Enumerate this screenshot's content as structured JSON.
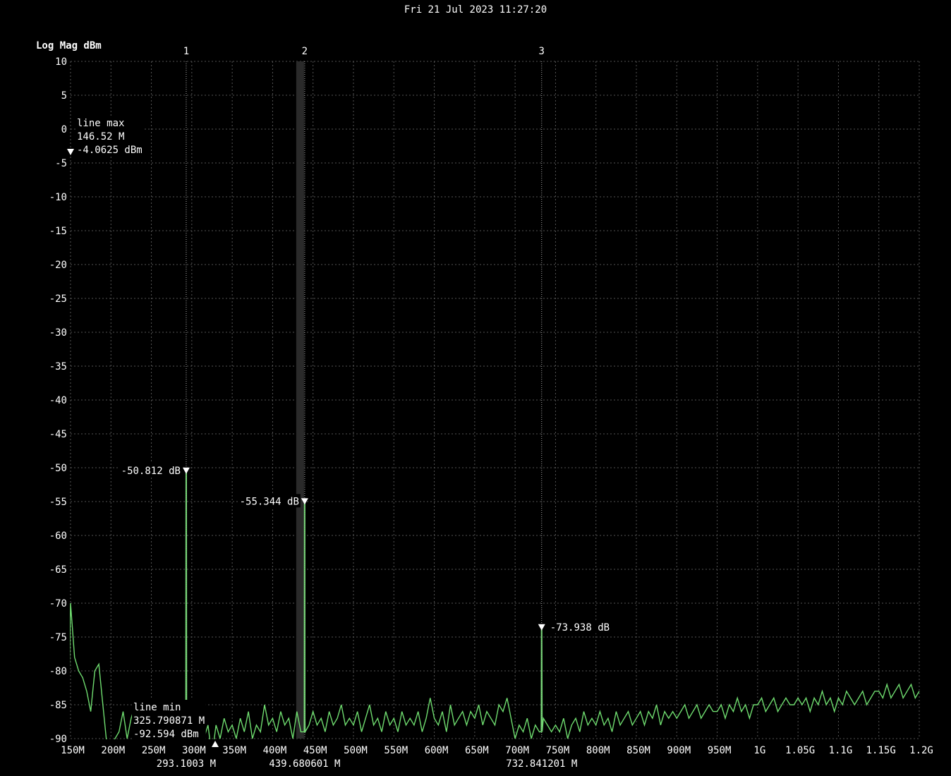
{
  "header": {
    "timestamp": "Fri 21 Jul 2023 11:27:20"
  },
  "colors": {
    "background": "#000000",
    "trace": "#6fdc6f",
    "grid": "#555555",
    "text": "#ffffff",
    "selected_marker_band": "#2a2a2a"
  },
  "chart_data": {
    "type": "line",
    "ylabel": "Log Mag dBm",
    "ylim": [
      -90,
      10
    ],
    "yticks": [
      10,
      5,
      0,
      -5,
      -10,
      -15,
      -20,
      -25,
      -30,
      -35,
      -40,
      -45,
      -50,
      -55,
      -60,
      -65,
      -70,
      -75,
      -80,
      -85,
      -90
    ],
    "xlim_mhz": [
      150,
      1200
    ],
    "xticks": [
      {
        "f": 150,
        "label": "150M"
      },
      {
        "f": 200,
        "label": "200M"
      },
      {
        "f": 250,
        "label": "250M"
      },
      {
        "f": 300,
        "label": "300M"
      },
      {
        "f": 350,
        "label": "350M"
      },
      {
        "f": 400,
        "label": "400M"
      },
      {
        "f": 450,
        "label": "450M"
      },
      {
        "f": 500,
        "label": "500M"
      },
      {
        "f": 550,
        "label": "550M"
      },
      {
        "f": 600,
        "label": "600M"
      },
      {
        "f": 650,
        "label": "650M"
      },
      {
        "f": 700,
        "label": "700M"
      },
      {
        "f": 750,
        "label": "750M"
      },
      {
        "f": 800,
        "label": "800M"
      },
      {
        "f": 850,
        "label": "850M"
      },
      {
        "f": 900,
        "label": "900M"
      },
      {
        "f": 950,
        "label": "950M"
      },
      {
        "f": 1000,
        "label": "1G"
      },
      {
        "f": 1050,
        "label": "1.05G"
      },
      {
        "f": 1100,
        "label": "1.1G"
      },
      {
        "f": 1150,
        "label": "1.15G"
      },
      {
        "f": 1200,
        "label": "1.2G"
      }
    ],
    "grid": true,
    "trace": {
      "start_mhz": 150,
      "step_mhz": 5,
      "values_dbm": [
        -70,
        -78,
        -80,
        -81,
        -83,
        -86,
        -80,
        -79,
        -85,
        -91,
        -91,
        -90,
        -89,
        -86,
        -90,
        -87,
        -85,
        -88,
        -86,
        -89,
        -91,
        -89,
        -90,
        -88,
        -90,
        -89,
        -88,
        -90,
        -91,
        -90,
        -90,
        -91,
        -89,
        -90,
        -88,
        -92.6,
        -88,
        -90,
        -87,
        -89,
        -88,
        -90,
        -87,
        -89,
        -86,
        -90,
        -88,
        -89,
        -85,
        -88,
        -87,
        -89,
        -86,
        -88,
        -87,
        -90,
        -86,
        -89,
        -87,
        -88,
        -86,
        -88,
        -87,
        -89,
        -86,
        -88,
        -87,
        -85,
        -88,
        -87,
        -88,
        -86,
        -89,
        -87,
        -85,
        -88,
        -87,
        -89,
        -86,
        -88,
        -87,
        -89,
        -86,
        -88,
        -87,
        -88,
        -86,
        -89,
        -87,
        -84,
        -87,
        -88,
        -86,
        -89,
        -85,
        -88,
        -87,
        -86,
        -88,
        -86,
        -87,
        -85,
        -88,
        -86,
        -87,
        -88,
        -85,
        -86,
        -84,
        -87,
        -90,
        -88,
        -89,
        -87,
        -90,
        -88,
        -89,
        -87,
        -88,
        -89,
        -88,
        -89,
        -87,
        -90,
        -88,
        -87,
        -89,
        -86,
        -88,
        -87,
        -88,
        -86,
        -88,
        -87,
        -89,
        -86,
        -88,
        -87,
        -86,
        -88,
        -87,
        -86,
        -88,
        -86,
        -87,
        -85,
        -88,
        -86,
        -87,
        -86,
        -87,
        -86,
        -85,
        -87,
        -86,
        -85,
        -87,
        -86,
        -85,
        -86,
        -86,
        -85,
        -87,
        -85,
        -86,
        -84,
        -86,
        -85,
        -87,
        -85,
        -85,
        -84,
        -86,
        -85,
        -84,
        -86,
        -85,
        -84,
        -85,
        -85,
        -84,
        -85,
        -84,
        -86,
        -84,
        -85,
        -83,
        -85,
        -84,
        -86,
        -84,
        -85,
        -83,
        -84,
        -85,
        -84,
        -83,
        -85,
        -84,
        -83,
        -83,
        -84,
        -82,
        -84,
        -83,
        -82,
        -84,
        -83,
        -82,
        -84,
        -83
      ],
      "peaks": [
        {
          "f": 146.52,
          "dbm": -4.0625
        },
        {
          "f": 293.1003,
          "dbm": -50.812
        },
        {
          "f": 439.680601,
          "dbm": -55.344
        },
        {
          "f": 732.841201,
          "dbm": -73.938
        }
      ]
    },
    "markers": [
      {
        "id": "1",
        "f": 293.1003,
        "dbm": -50.812,
        "value_label": "-50.812 dB",
        "freq_label": "293.1003 M",
        "label_side": "left",
        "selected": false
      },
      {
        "id": "2",
        "f": 439.680601,
        "dbm": -55.344,
        "value_label": "-55.344 dB",
        "freq_label": "439.680601 M",
        "label_side": "left",
        "selected": true
      },
      {
        "id": "3",
        "f": 732.841201,
        "dbm": -73.938,
        "value_label": "-73.938 dB",
        "freq_label": "732.841201 M",
        "label_side": "right",
        "selected": false
      }
    ],
    "line_max": {
      "title": "line max",
      "freq": "146.52 M",
      "value": "-4.0625 dBm",
      "f": 146.52,
      "dbm": -4.0625
    },
    "line_min": {
      "title": "line min",
      "freq": "325.790871 M",
      "value": "-92.594 dBm",
      "f": 325.790871,
      "dbm": -92.594
    }
  }
}
